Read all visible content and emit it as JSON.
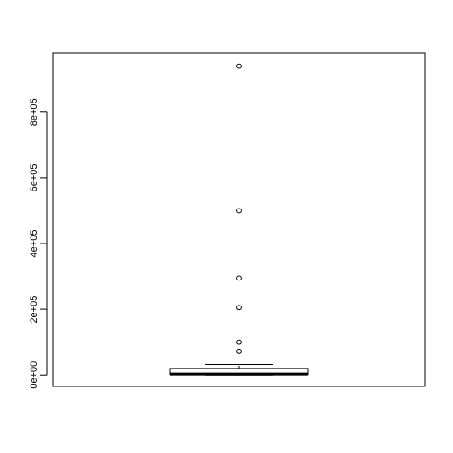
{
  "chart_data": {
    "type": "box",
    "title": "",
    "xlabel": "",
    "ylabel": "",
    "ylim": [
      -35000,
      980000
    ],
    "y_ticks": [
      {
        "value": 0,
        "label": "0e+00"
      },
      {
        "value": 200000,
        "label": "2e+05"
      },
      {
        "value": 400000,
        "label": "4e+05"
      },
      {
        "value": 600000,
        "label": "6e+05"
      },
      {
        "value": 800000,
        "label": "8e+05"
      }
    ],
    "box": {
      "min": 0,
      "q1": 2000,
      "median": 3000,
      "q3": 20000,
      "whisker_high": 32000
    },
    "outliers": [
      940000,
      500000,
      295000,
      205000,
      100000,
      72000
    ],
    "colors": {
      "stroke": "#000000",
      "background": "#ffffff"
    }
  }
}
